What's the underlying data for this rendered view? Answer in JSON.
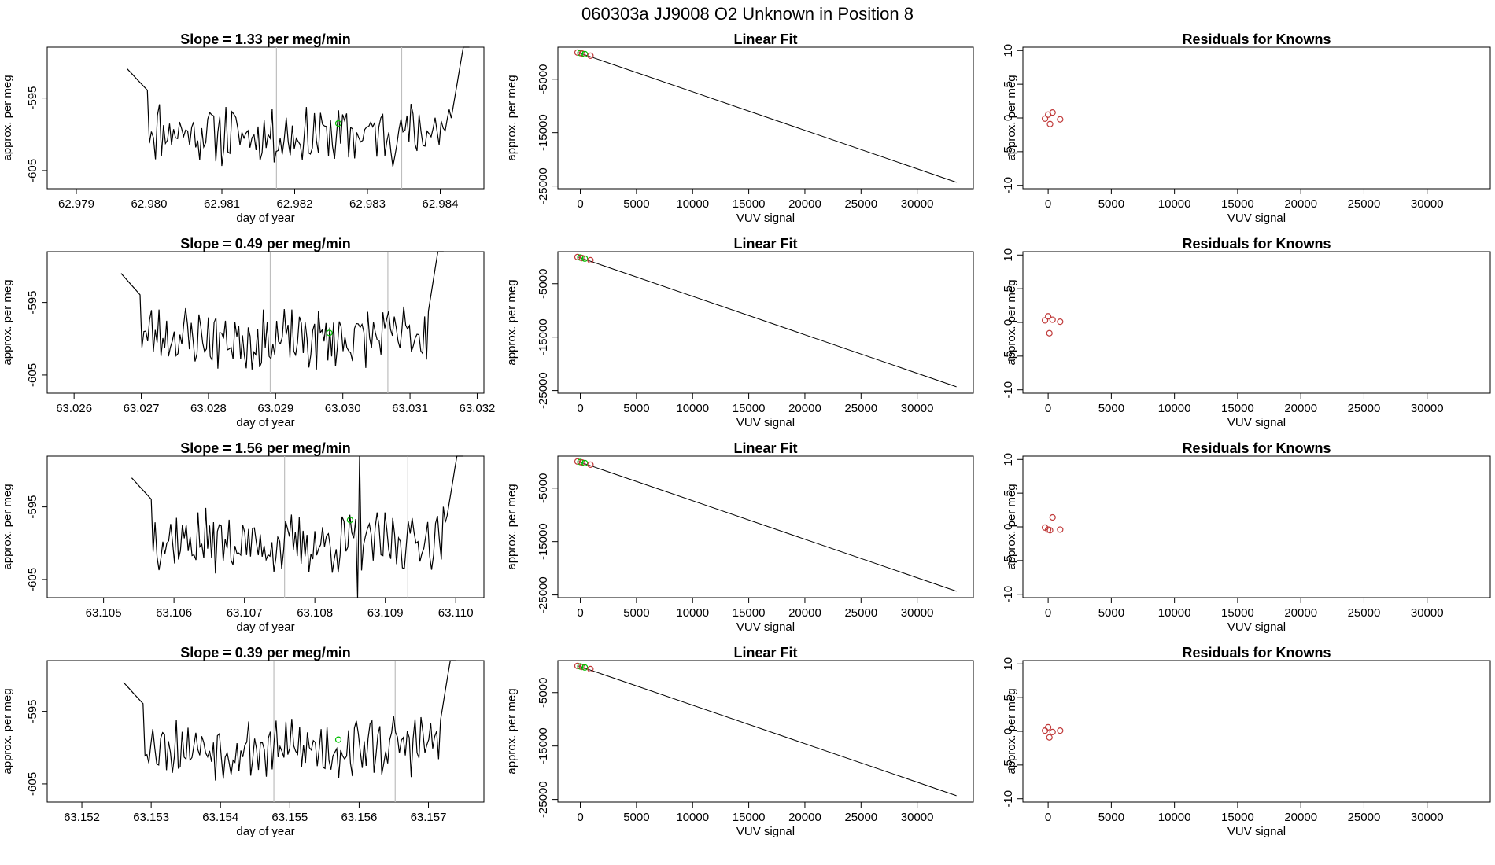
{
  "page_title": "060303a     JJ9008   O2 Unknown in Position  8",
  "colors": {
    "trace": "#000000",
    "vline": "#bebebe",
    "green": "#00c000",
    "red": "#c03a3a"
  },
  "labels": {
    "time_ylabel": "approx. per meg",
    "time_xlabel": "day of year",
    "fit_title": "Linear Fit",
    "fit_ylabel": "approx. per meg",
    "fit_xlabel": "VUV signal",
    "resid_title": "Residuals for Knowns",
    "resid_ylabel": "approx. per meg",
    "resid_xlabel": "VUV signal"
  },
  "chart_data": {
    "type": "multi-panel",
    "rows": [
      {
        "slope_title": "Slope =  1.33  per meg/min",
        "time": {
          "type": "line",
          "xlim": [
            62.9786,
            62.9846
          ],
          "xticks": [
            "62.979",
            "62.980",
            "62.981",
            "62.982",
            "62.983",
            "62.984"
          ],
          "xtick_values": [
            62.979,
            62.98,
            62.981,
            62.982,
            62.983,
            62.984
          ],
          "ylim": [
            -607.5,
            -588
          ],
          "yticks": [
            "-595",
            "-605"
          ],
          "ytick_values": [
            -595,
            -605
          ],
          "x_start": 62.9797,
          "x_end": 62.9844,
          "vlines": [
            62.98175,
            62.98347
          ],
          "green_point": [
            62.9826,
            -598.5
          ],
          "seed": 11
        },
        "fit": {
          "type": "line+scatter",
          "xlim": [
            -2000,
            35000
          ],
          "xticks": [
            "0",
            "5000",
            "10000",
            "15000",
            "20000",
            "25000",
            "30000"
          ],
          "xtick_values": [
            0,
            5000,
            10000,
            15000,
            20000,
            25000,
            30000
          ],
          "ylim": [
            -25500,
            1000
          ],
          "yticks": [
            "-5000",
            "-15000",
            "-25000"
          ],
          "ytick_values": [
            -5000,
            -15000,
            -25000
          ],
          "line": [
            [
              -200,
              0
            ],
            [
              33500,
              -24300
            ]
          ],
          "points": [
            [
              -250,
              0
            ],
            [
              0,
              -100
            ],
            [
              150,
              -200
            ],
            [
              400,
              -300
            ],
            [
              900,
              -600
            ]
          ]
        },
        "resid": {
          "type": "scatter",
          "xlim": [
            -2000,
            35000
          ],
          "xticks": [
            "0",
            "5000",
            "10000",
            "15000",
            "20000",
            "25000",
            "30000"
          ],
          "xtick_values": [
            0,
            5000,
            10000,
            15000,
            20000,
            25000,
            30000
          ],
          "ylim": [
            -10.5,
            10.5
          ],
          "yticks": [
            "10",
            "5",
            "0",
            "-5",
            "-10"
          ],
          "ytick_values": [
            10,
            5,
            0,
            -5,
            -10
          ],
          "points": [
            [
              -250,
              -0.1
            ],
            [
              0,
              0.5
            ],
            [
              150,
              -0.9
            ],
            [
              350,
              0.8
            ],
            [
              950,
              -0.2
            ]
          ]
        }
      },
      {
        "slope_title": "Slope =  0.49  per meg/min",
        "time": {
          "type": "line",
          "xlim": [
            63.0256,
            63.0321
          ],
          "xticks": [
            "63.026",
            "63.027",
            "63.028",
            "63.029",
            "63.030",
            "63.031",
            "63.032"
          ],
          "xtick_values": [
            63.026,
            63.027,
            63.028,
            63.029,
            63.03,
            63.031,
            63.032
          ],
          "ylim": [
            -607.5,
            -588
          ],
          "yticks": [
            "-595",
            "-605"
          ],
          "ytick_values": [
            -595,
            -605
          ],
          "x_start": 63.0267,
          "x_end": 63.0315,
          "vlines": [
            63.02892,
            63.03067
          ],
          "green_point": [
            63.0298,
            -599.2
          ],
          "seed": 23
        },
        "fit": {
          "type": "line+scatter",
          "xlim": [
            -2000,
            35000
          ],
          "xticks": [
            "0",
            "5000",
            "10000",
            "15000",
            "20000",
            "25000",
            "30000"
          ],
          "xtick_values": [
            0,
            5000,
            10000,
            15000,
            20000,
            25000,
            30000
          ],
          "ylim": [
            -25500,
            1000
          ],
          "yticks": [
            "-5000",
            "-15000",
            "-25000"
          ],
          "ytick_values": [
            -5000,
            -15000,
            -25000
          ],
          "line": [
            [
              -200,
              0
            ],
            [
              33500,
              -24300
            ]
          ],
          "points": [
            [
              -250,
              0
            ],
            [
              0,
              -100
            ],
            [
              150,
              -200
            ],
            [
              400,
              -300
            ],
            [
              900,
              -600
            ]
          ]
        },
        "resid": {
          "type": "scatter",
          "xlim": [
            -2000,
            35000
          ],
          "xticks": [
            "0",
            "5000",
            "10000",
            "15000",
            "20000",
            "25000",
            "30000"
          ],
          "xtick_values": [
            0,
            5000,
            10000,
            15000,
            20000,
            25000,
            30000
          ],
          "ylim": [
            -10.5,
            10.5
          ],
          "yticks": [
            "10",
            "5",
            "0",
            "-5",
            "-10"
          ],
          "ytick_values": [
            10,
            5,
            0,
            -5,
            -10
          ],
          "points": [
            [
              -250,
              0.3
            ],
            [
              0,
              0.9
            ],
            [
              100,
              -1.6
            ],
            [
              350,
              0.4
            ],
            [
              950,
              0.1
            ]
          ]
        }
      },
      {
        "slope_title": "Slope =  1.56  per meg/min",
        "time": {
          "type": "line",
          "xlim": [
            63.1042,
            63.1104
          ],
          "xticks": [
            "63.105",
            "63.106",
            "63.107",
            "63.108",
            "63.109",
            "63.110"
          ],
          "xtick_values": [
            63.105,
            63.106,
            63.107,
            63.108,
            63.109,
            63.11
          ],
          "ylim": [
            -607.5,
            -588
          ],
          "yticks": [
            "-595",
            "-605"
          ],
          "ytick_values": [
            -595,
            -605
          ],
          "x_start": 63.1054,
          "x_end": 63.1101,
          "vlines": [
            63.10757,
            63.10932
          ],
          "green_point": [
            63.1085,
            -596.8
          ],
          "seed": 37,
          "spike": [
            63.1086,
            63.10865
          ]
        },
        "fit": {
          "type": "line+scatter",
          "xlim": [
            -2000,
            35000
          ],
          "xticks": [
            "0",
            "5000",
            "10000",
            "15000",
            "20000",
            "25000",
            "30000"
          ],
          "xtick_values": [
            0,
            5000,
            10000,
            15000,
            20000,
            25000,
            30000
          ],
          "ylim": [
            -25500,
            1000
          ],
          "yticks": [
            "-5000",
            "-15000",
            "-25000"
          ],
          "ytick_values": [
            -5000,
            -15000,
            -25000
          ],
          "line": [
            [
              -200,
              0
            ],
            [
              33500,
              -24300
            ]
          ],
          "points": [
            [
              -250,
              0
            ],
            [
              0,
              -100
            ],
            [
              150,
              -200
            ],
            [
              400,
              -300
            ],
            [
              900,
              -600
            ]
          ]
        },
        "resid": {
          "type": "scatter",
          "xlim": [
            -2000,
            35000
          ],
          "xticks": [
            "0",
            "5000",
            "10000",
            "15000",
            "20000",
            "25000",
            "30000"
          ],
          "xtick_values": [
            0,
            5000,
            10000,
            15000,
            20000,
            25000,
            30000
          ],
          "ylim": [
            -10.5,
            10.5
          ],
          "yticks": [
            "10",
            "5",
            "0",
            "-5",
            "-10"
          ],
          "ytick_values": [
            10,
            5,
            0,
            -5,
            -10
          ],
          "points": [
            [
              -250,
              -0.1
            ],
            [
              0,
              -0.4
            ],
            [
              150,
              -0.5
            ],
            [
              350,
              1.4
            ],
            [
              950,
              -0.4
            ]
          ]
        }
      },
      {
        "slope_title": "Slope =  0.39  per meg/min",
        "time": {
          "type": "line",
          "xlim": [
            63.1515,
            63.1578
          ],
          "xticks": [
            "63.152",
            "63.153",
            "63.154",
            "63.155",
            "63.156",
            "63.157"
          ],
          "xtick_values": [
            63.152,
            63.153,
            63.154,
            63.155,
            63.156,
            63.157
          ],
          "ylim": [
            -607.5,
            -588
          ],
          "yticks": [
            "-595",
            "-605"
          ],
          "ytick_values": [
            -595,
            -605
          ],
          "x_start": 63.1526,
          "x_end": 63.1574,
          "vlines": [
            63.15477,
            63.15652
          ],
          "green_point": [
            63.1557,
            -598.9
          ],
          "seed": 53
        },
        "fit": {
          "type": "line+scatter",
          "xlim": [
            -2000,
            35000
          ],
          "xticks": [
            "0",
            "5000",
            "10000",
            "15000",
            "20000",
            "25000",
            "30000"
          ],
          "xtick_values": [
            0,
            5000,
            10000,
            15000,
            20000,
            25000,
            30000
          ],
          "ylim": [
            -25500,
            1000
          ],
          "yticks": [
            "-5000",
            "-15000",
            "-25000"
          ],
          "ytick_values": [
            -5000,
            -15000,
            -25000
          ],
          "line": [
            [
              -200,
              0
            ],
            [
              33500,
              -24300
            ]
          ],
          "points": [
            [
              -250,
              0
            ],
            [
              0,
              -100
            ],
            [
              150,
              -200
            ],
            [
              400,
              -300
            ],
            [
              900,
              -600
            ]
          ]
        },
        "resid": {
          "type": "scatter",
          "xlim": [
            -2000,
            35000
          ],
          "xticks": [
            "0",
            "5000",
            "10000",
            "15000",
            "20000",
            "25000",
            "30000"
          ],
          "xtick_values": [
            0,
            5000,
            10000,
            15000,
            20000,
            25000,
            30000
          ],
          "ylim": [
            -10.5,
            10.5
          ],
          "yticks": [
            "10",
            "5",
            "0",
            "-5",
            "-10"
          ],
          "ytick_values": [
            10,
            5,
            0,
            -5,
            -10
          ],
          "points": [
            [
              -250,
              0.1
            ],
            [
              0,
              0.6
            ],
            [
              100,
              -0.9
            ],
            [
              350,
              -0.1
            ],
            [
              950,
              0.1
            ]
          ]
        }
      }
    ]
  }
}
